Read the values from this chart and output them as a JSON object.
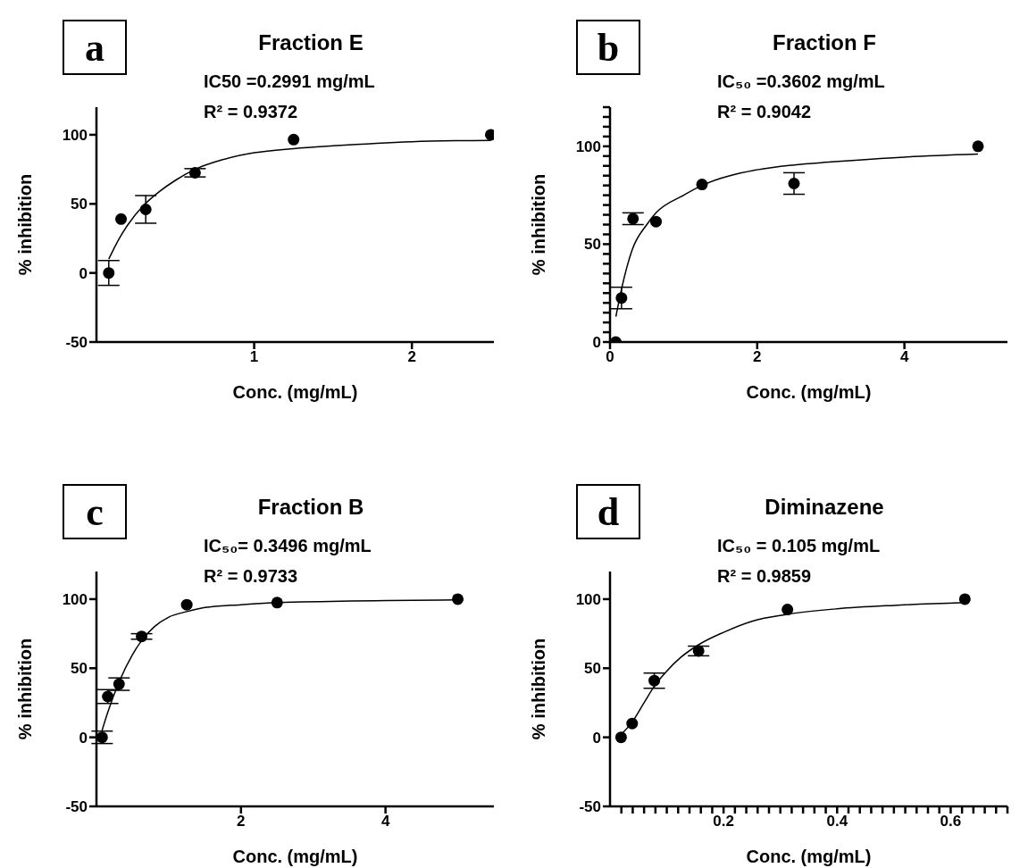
{
  "chart_data": [
    {
      "type": "scatter",
      "title": "Fraction E",
      "xlabel": "Conc. (mg/mL)",
      "ylabel": "% inhibition",
      "annotations": [
        "a",
        "IC50 =0.2991 mg/mL",
        "R² =  0.9372"
      ],
      "xlim": [
        0,
        2.52
      ],
      "ylim": [
        -50,
        120
      ],
      "xticks": [
        1,
        2
      ],
      "yticks": [
        -50,
        0,
        50,
        100
      ],
      "marker": "circle",
      "series": [
        {
          "color": "#000000",
          "x": [
            0.078,
            0.156,
            0.3125,
            0.625,
            1.25,
            2.5
          ],
          "values": [
            0,
            39,
            46,
            72.5,
            96.5,
            100
          ],
          "errors": [
            9,
            null,
            10,
            3,
            null,
            null
          ]
        },
        {
          "type": "line",
          "color": "#000000",
          "marker": "none",
          "x": [
            0.078,
            0.15,
            0.2,
            0.3,
            0.4,
            0.5,
            0.625,
            0.8,
            1.0,
            1.25,
            1.5,
            2.0,
            2.5
          ],
          "values": [
            10,
            26,
            35,
            49,
            59,
            67,
            75,
            82,
            87,
            90,
            92,
            95,
            96
          ]
        }
      ]
    },
    {
      "type": "scatter",
      "title": "Fraction F",
      "xlabel": "Conc. (mg/mL)",
      "ylabel": "% inhibition",
      "annotations": [
        "b",
        "IC₅₀ =0.3602 mg/mL",
        "R² = 0.9042"
      ],
      "xlim": [
        0,
        5.4
      ],
      "ylim": [
        0,
        120
      ],
      "xticks": [
        0,
        2,
        4
      ],
      "yticks": [
        0,
        {
          "value": 5,
          "label": null
        },
        {
          "value": 10,
          "label": null
        },
        {
          "value": 15,
          "label": null
        },
        {
          "value": 20,
          "label": null
        },
        {
          "value": 25,
          "label": null
        },
        {
          "value": 30,
          "label": null
        },
        {
          "value": 35,
          "label": null
        },
        {
          "value": 40,
          "label": null
        },
        {
          "value": 45,
          "label": null
        },
        50,
        {
          "value": 55,
          "label": null
        },
        {
          "value": 60,
          "label": null
        },
        {
          "value": 65,
          "label": null
        },
        {
          "value": 70,
          "label": null
        },
        {
          "value": 75,
          "label": null
        },
        {
          "value": 80,
          "label": null
        },
        {
          "value": 85,
          "label": null
        },
        {
          "value": 90,
          "label": null
        },
        {
          "value": 95,
          "label": null
        },
        100,
        {
          "value": 105,
          "label": null
        },
        {
          "value": 110,
          "label": null
        },
        {
          "value": 115,
          "label": null
        },
        {
          "value": 120,
          "label": null
        }
      ],
      "marker": "circle",
      "series": [
        {
          "color": "#000000",
          "x": [
            0.078,
            0.156,
            0.3125,
            0.625,
            1.25,
            2.5,
            5
          ],
          "values": [
            0,
            22.5,
            63,
            61.5,
            80.5,
            81,
            100
          ],
          "errors": [
            null,
            5.5,
            3,
            null,
            null,
            5.5,
            null
          ]
        },
        {
          "type": "line",
          "color": "#000000",
          "marker": "none",
          "x": [
            0.08,
            0.156,
            0.3,
            0.5,
            0.625,
            1.0,
            1.25,
            2.0,
            2.5,
            3.0,
            4.0,
            5.0
          ],
          "values": [
            13,
            27,
            47,
            60,
            66,
            75,
            80,
            88,
            90.5,
            92,
            94.5,
            96
          ]
        }
      ]
    },
    {
      "type": "scatter",
      "title": "Fraction B",
      "xlabel": "Conc. (mg/mL)",
      "ylabel": "% inhibition",
      "annotations": [
        "c",
        "IC₅₀= 0.3496 mg/mL",
        "R² = 0.9733"
      ],
      "xlim": [
        0,
        5.5
      ],
      "ylim": [
        -50,
        120
      ],
      "xticks": [
        2,
        4
      ],
      "yticks": [
        -50,
        0,
        50,
        100
      ],
      "marker": "circle",
      "series": [
        {
          "color": "#000000",
          "x": [
            0.078,
            0.156,
            0.3125,
            0.625,
            1.25,
            2.5,
            5
          ],
          "values": [
            0,
            29.5,
            38.5,
            73,
            96,
            97.5,
            100
          ],
          "errors": [
            4.5,
            5,
            4.5,
            2,
            null,
            null,
            null
          ]
        },
        {
          "type": "line",
          "color": "#000000",
          "marker": "none",
          "x": [
            0.078,
            0.156,
            0.3125,
            0.5,
            0.625,
            0.8,
            1.0,
            1.25,
            1.5,
            2.0,
            2.5,
            5.0
          ],
          "values": [
            5,
            18,
            40,
            60,
            70,
            80,
            87,
            91,
            94,
            96,
            97.5,
            99.5
          ]
        }
      ]
    },
    {
      "type": "scatter",
      "title": "Diminazene",
      "xlabel": "Conc. (mg/mL)",
      "ylabel": "% inhibition",
      "annotations": [
        "d",
        "IC₅₀ = 0.105 mg/mL",
        "R² = 0.9859"
      ],
      "xlim": [
        0,
        0.7
      ],
      "ylim": [
        -50,
        120
      ],
      "xticks": [
        {
          "value": 0.02,
          "label": null
        },
        {
          "value": 0.04,
          "label": null
        },
        {
          "value": 0.06,
          "label": null
        },
        {
          "value": 0.08,
          "label": null
        },
        {
          "value": 0.1,
          "label": null
        },
        {
          "value": 0.12,
          "label": null
        },
        {
          "value": 0.14,
          "label": null
        },
        {
          "value": 0.16,
          "label": null
        },
        {
          "value": 0.18,
          "label": null
        },
        0.2,
        {
          "value": 0.22,
          "label": null
        },
        {
          "value": 0.24,
          "label": null
        },
        {
          "value": 0.26,
          "label": null
        },
        {
          "value": 0.28,
          "label": null
        },
        {
          "value": 0.3,
          "label": null
        },
        {
          "value": 0.32,
          "label": null
        },
        {
          "value": 0.34,
          "label": null
        },
        {
          "value": 0.36,
          "label": null
        },
        {
          "value": 0.38,
          "label": null
        },
        0.4,
        {
          "value": 0.42,
          "label": null
        },
        {
          "value": 0.44,
          "label": null
        },
        {
          "value": 0.46,
          "label": null
        },
        {
          "value": 0.48,
          "label": null
        },
        {
          "value": 0.5,
          "label": null
        },
        {
          "value": 0.52,
          "label": null
        },
        {
          "value": 0.54,
          "label": null
        },
        {
          "value": 0.56,
          "label": null
        },
        {
          "value": 0.58,
          "label": null
        },
        0.6,
        {
          "value": 0.62,
          "label": null
        },
        {
          "value": 0.64,
          "label": null
        },
        {
          "value": 0.66,
          "label": null
        },
        {
          "value": 0.68,
          "label": null
        },
        {
          "value": 0.7,
          "label": null
        }
      ],
      "yticks": [
        -50,
        0,
        50,
        100
      ],
      "marker": "circle",
      "series": [
        {
          "color": "#000000",
          "x": [
            0.0195,
            0.039,
            0.078,
            0.156,
            0.3125,
            0.625
          ],
          "values": [
            0,
            10,
            41,
            62.5,
            92.5,
            100
          ],
          "errors": [
            null,
            null,
            5.5,
            3.5,
            null,
            null
          ]
        },
        {
          "type": "line",
          "color": "#000000",
          "marker": "none",
          "x": [
            0.0195,
            0.039,
            0.06,
            0.078,
            0.1,
            0.125,
            0.156,
            0.2,
            0.25,
            0.3125,
            0.4,
            0.5,
            0.625
          ],
          "values": [
            2,
            11,
            25,
            37,
            48,
            58,
            67,
            76,
            84,
            89,
            93,
            95.5,
            97.5
          ]
        }
      ]
    }
  ]
}
